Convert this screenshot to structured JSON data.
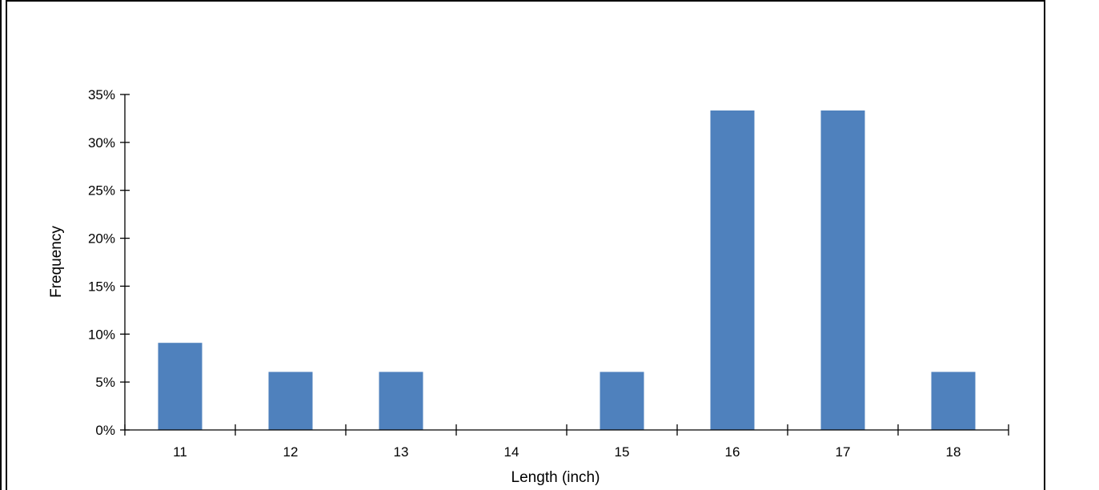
{
  "chart_data": {
    "type": "bar",
    "title": "",
    "xlabel": "Length (inch)",
    "ylabel": "Frequency",
    "categories": [
      "11",
      "12",
      "13",
      "14",
      "15",
      "16",
      "17",
      "18"
    ],
    "values": [
      0.0909,
      0.0606,
      0.0606,
      0.0,
      0.0606,
      0.3333,
      0.3333,
      0.0606
    ],
    "ylim": [
      0,
      0.35
    ],
    "yticks": [
      0,
      0.05,
      0.1,
      0.15,
      0.2,
      0.25,
      0.3,
      0.35
    ],
    "ytick_labels": [
      "0%",
      "5%",
      "10%",
      "15%",
      "20%",
      "25%",
      "30%",
      "35%"
    ],
    "grid": false,
    "legend": "none",
    "bar_color": "#4F81BD",
    "axis_color": "#000000"
  }
}
